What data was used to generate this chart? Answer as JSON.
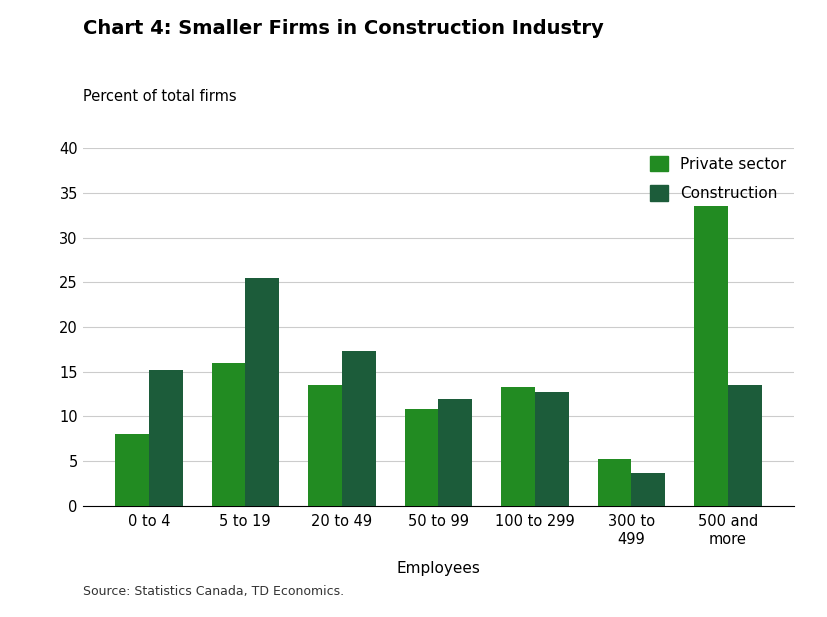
{
  "title": "Chart 4: Smaller Firms in Construction Industry",
  "ylabel": "Percent of total firms",
  "xlabel": "Employees",
  "categories": [
    "0 to 4",
    "5 to 19",
    "20 to 49",
    "50 to 99",
    "100 to 299",
    "300 to\n499",
    "500 and\nmore"
  ],
  "private_sector": [
    8.0,
    16.0,
    13.5,
    10.8,
    13.3,
    5.3,
    33.5
  ],
  "construction": [
    15.2,
    25.5,
    17.3,
    12.0,
    12.7,
    3.7,
    13.5
  ],
  "private_color": "#228B22",
  "construction_color": "#1C5C3A",
  "ylim": [
    0,
    40
  ],
  "yticks": [
    0,
    5,
    10,
    15,
    20,
    25,
    30,
    35,
    40
  ],
  "legend_labels": [
    "Private sector",
    "Construction"
  ],
  "source": "Source: Statistics Canada, TD Economics.",
  "bar_width": 0.35,
  "background_color": "#ffffff",
  "grid_color": "#cccccc"
}
